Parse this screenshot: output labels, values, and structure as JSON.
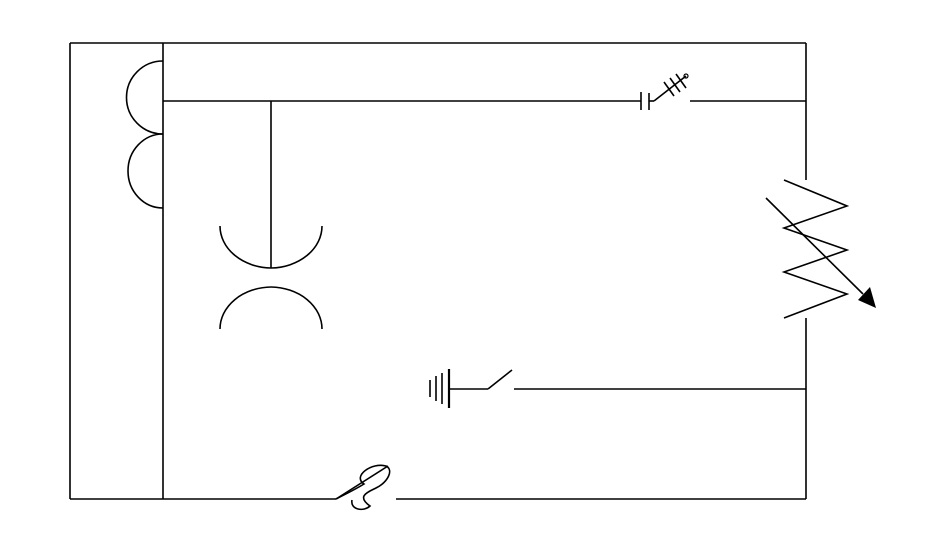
{
  "diagram": {
    "background_color": "#ffffff",
    "line_color": "#000000",
    "components": [
      {
        "id": "outer-frame",
        "icon": "frame"
      },
      {
        "id": "inductor-coil-left",
        "icon": "inductor-icon"
      },
      {
        "id": "transformer",
        "icon": "transformer-icon"
      },
      {
        "id": "variable-capacitor",
        "icon": "variable-capacitor-icon"
      },
      {
        "id": "variable-resistor",
        "icon": "rheostat-icon"
      },
      {
        "id": "battery-with-switch",
        "icon": "battery-switch-icon"
      },
      {
        "id": "fuse",
        "icon": "fuse-icon"
      }
    ]
  }
}
